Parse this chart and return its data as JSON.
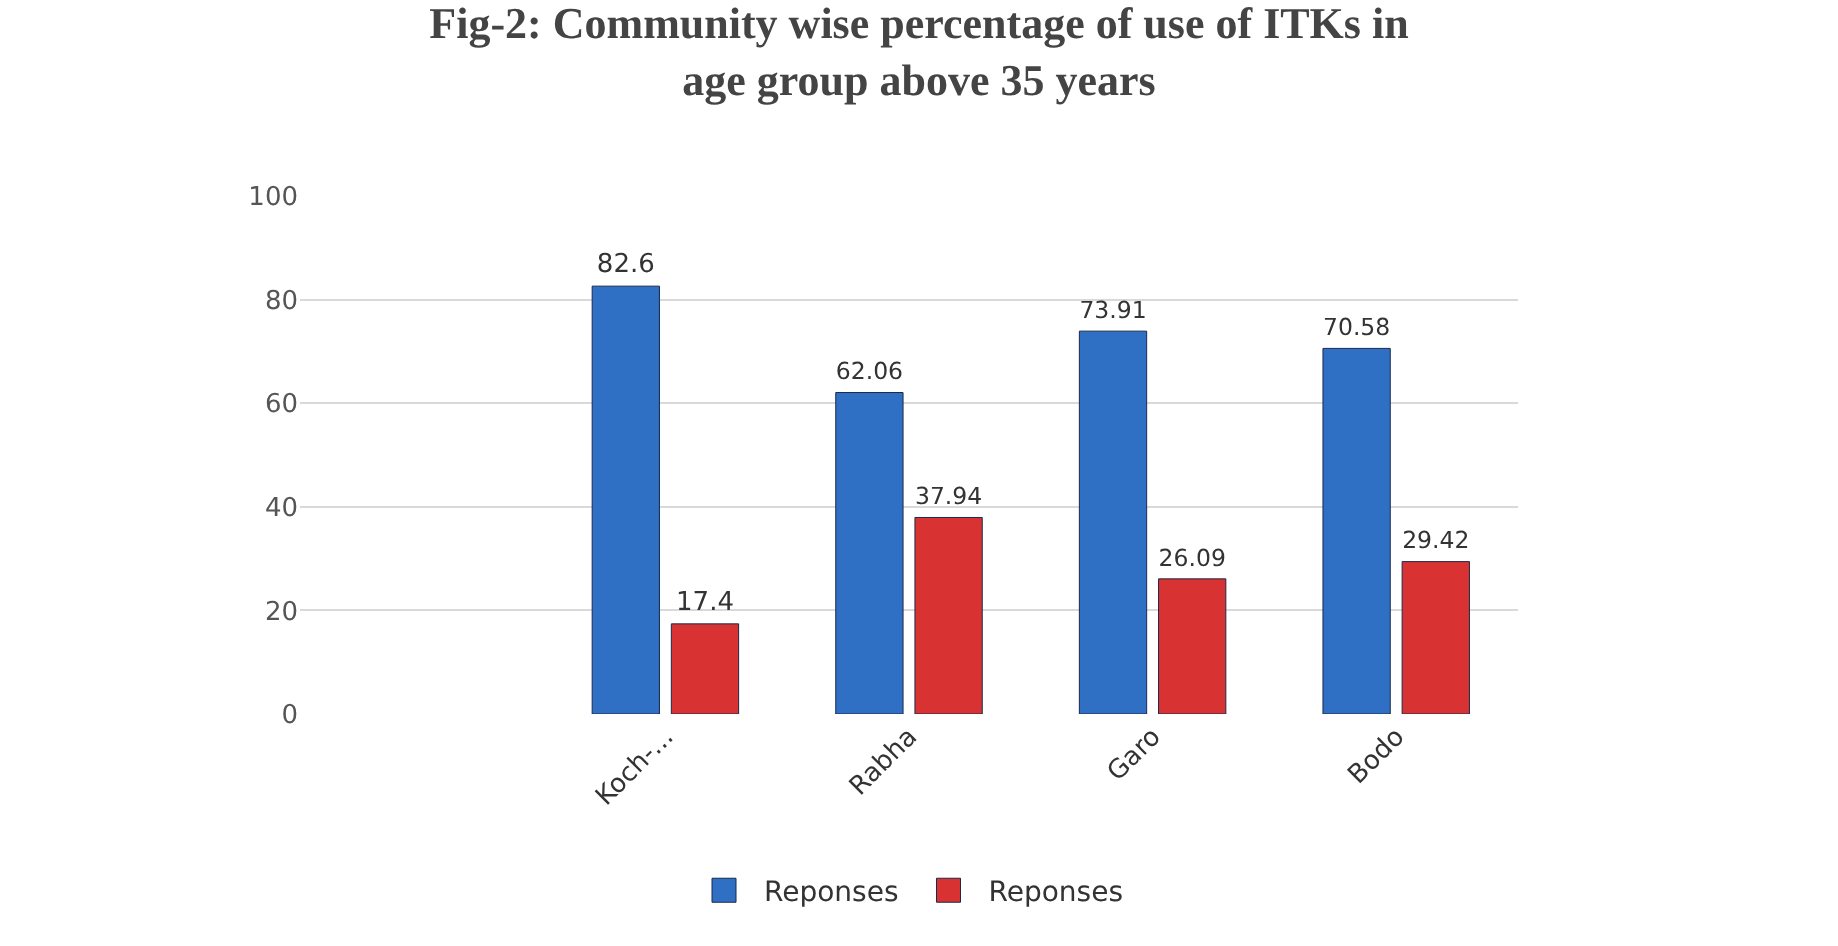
{
  "chart_data": {
    "type": "bar",
    "title": "Fig-2: Community wise percentage of use of ITKs in age group above 35 years",
    "categories": [
      null,
      "Koch-...",
      "Rabha",
      "Garo",
      "Bodo"
    ],
    "series": [
      {
        "name": "Reponses",
        "color": "#2f6fc4",
        "values": [
          null,
          82.6,
          62.06,
          73.91,
          70.58
        ]
      },
      {
        "name": "Reponses",
        "color": "#d93232",
        "values": [
          null,
          17.4,
          37.94,
          26.09,
          29.42
        ]
      }
    ],
    "ylim": [
      0,
      100
    ],
    "yticks": [
      0,
      20,
      40,
      60,
      80,
      100
    ],
    "grid": "y",
    "legend": "bottom",
    "data_labels": true
  }
}
